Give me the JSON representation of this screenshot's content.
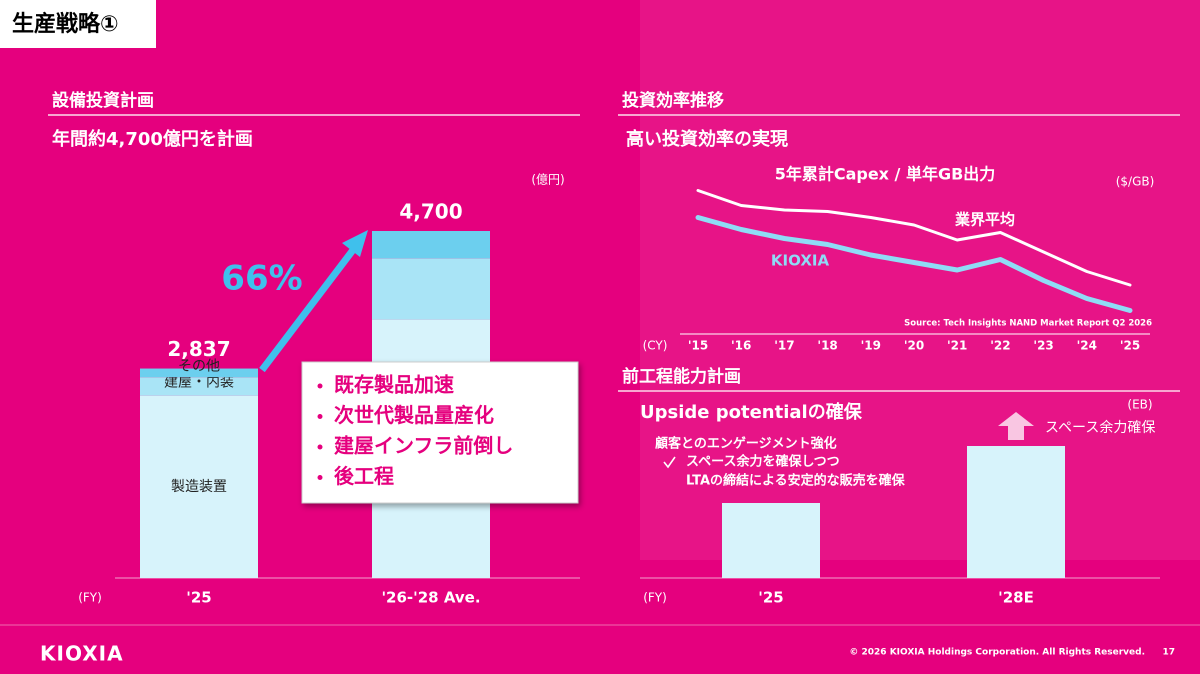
{
  "header": {
    "title": "生産戦略①"
  },
  "sections": {
    "left_heading": "設備投資計画",
    "left_subheading": "年間約4,700億円を計画",
    "right_heading": "投資効率推移",
    "right_subheading": "高い投資効率の実現",
    "lower_right_heading": "前工程能力計画"
  },
  "chart_data": [
    {
      "type": "stacked-bar",
      "unit": "(億円)",
      "x_unit": "(FY)",
      "categories": [
        "'25",
        "'26-'28 Ave."
      ],
      "series": [
        {
          "name": "製造装置",
          "color": "#d7f3fb",
          "values": [
            2470,
            3500
          ]
        },
        {
          "name": "建屋・内装",
          "color": "#a9e4f6",
          "values": [
            250,
            830
          ]
        },
        {
          "name": "その他",
          "color": "#6ccfee",
          "values": [
            117,
            370
          ]
        }
      ],
      "totals": [
        2837,
        4700
      ],
      "total_labels": [
        "2,837",
        "4,700"
      ],
      "growth": "66%",
      "bullets": [
        "既存製品加速",
        "次世代製品量産化",
        "建屋インフラ前倒し",
        "後工程"
      ]
    },
    {
      "type": "line",
      "title": "5年累計Capex / 単年GB出力",
      "unit": "($/GB)",
      "x_unit": "(CY)",
      "categories": [
        "'15",
        "'16",
        "'17",
        "'18",
        "'19",
        "'20",
        "'21",
        "'22",
        "'23",
        "'24",
        "'25"
      ],
      "series": [
        {
          "name": "業界平均",
          "color": "#ffffff",
          "values": [
            93,
            83,
            80,
            79,
            75,
            70,
            60,
            65,
            52,
            39,
            30
          ]
        },
        {
          "name": "KIOXIA",
          "color": "#8fdcf5",
          "values": [
            75,
            67,
            61,
            57,
            50,
            45,
            40,
            47,
            33,
            21,
            13
          ]
        }
      ],
      "source": "Source: Tech Insights NAND Market Report Q2 2026"
    },
    {
      "type": "bar",
      "subtitle": "Upside potentialの確保",
      "unit": "(EB)",
      "x_unit": "(FY)",
      "categories": [
        "'25",
        "'28E"
      ],
      "values": [
        75,
        132
      ],
      "color": "#d7f3fb",
      "notes": [
        "顧客とのエンゲージメント強化",
        "スペース余力を確保しつつ",
        "LTAの締結による安定的な販売を確保"
      ],
      "annotation": "スペース余力確保"
    }
  ],
  "footer": {
    "logo": "KIOXIA",
    "copyright": "© 2026 KIOXIA Holdings Corporation. All Rights Reserved.",
    "page": "17"
  }
}
